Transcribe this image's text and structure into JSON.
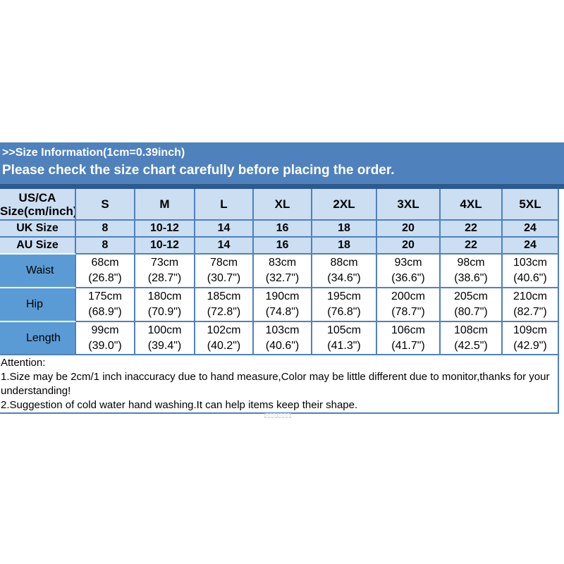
{
  "banner": {
    "line1": ">>Size Information(1cm=0.39inch)",
    "line2": "Please check the size chart carefully before placing the order."
  },
  "colors": {
    "banner_bg": "#4f81bd",
    "banner_bottom_border": "#2d5a8e",
    "light_blue_cell": "#cbdef2",
    "medium_blue_label_cell": "#5b9bd5",
    "grid_border": "#4f81bd",
    "banner_text": "#ffffff",
    "table_text": "#000000"
  },
  "size_table": {
    "corner": [
      "US/CA",
      "Size(cm/inch)"
    ],
    "sizes": [
      "S",
      "M",
      "L",
      "XL",
      "2XL",
      "3XL",
      "4XL",
      "5XL"
    ],
    "simple_rows": [
      {
        "label": "UK Size",
        "values": [
          "8",
          "10-12",
          "14",
          "16",
          "18",
          "20",
          "22",
          "24"
        ]
      },
      {
        "label": "AU Size",
        "values": [
          "8",
          "10-12",
          "14",
          "16",
          "18",
          "20",
          "22",
          "24"
        ]
      }
    ],
    "measure_rows": [
      {
        "label": "Waist",
        "cm": [
          "68cm",
          "73cm",
          "78cm",
          "83cm",
          "88cm",
          "93cm",
          "98cm",
          "103cm"
        ],
        "inch": [
          "(26.8\")",
          "(28.7\")",
          "(30.7\")",
          "(32.7\")",
          "(34.6\")",
          "(36.6\")",
          "(38.6\")",
          "(40.6\")"
        ]
      },
      {
        "label": "Hip",
        "cm": [
          "175cm",
          "180cm",
          "185cm",
          "190cm",
          "195cm",
          "200cm",
          "205cm",
          "210cm"
        ],
        "inch": [
          "(68.9\")",
          "(70.9\")",
          "(72.8\")",
          "(74.8\")",
          "(76.8\")",
          "(78.7\")",
          "(80.7\")",
          "(82.7\")"
        ]
      },
      {
        "label": "Length",
        "cm": [
          "99cm",
          "100cm",
          "102cm",
          "103cm",
          "105cm",
          "106cm",
          "108cm",
          "109cm"
        ],
        "inch": [
          "(39.0\")",
          "(39.4\")",
          "(40.2\")",
          "(40.6\")",
          "(41.3\")",
          "(41.7\")",
          "(42.5\")",
          "(42.9\")"
        ]
      }
    ]
  },
  "attention": {
    "title": "Attention:",
    "lines": [
      "1.Size may be 2cm/1 inch inaccuracy due to hand measure,Color may be little different due to monitor,thanks for your understanding!",
      "2.Suggestion of cold water hand washing.It can help items keep their shape."
    ]
  },
  "chart_data": {
    "type": "table",
    "title": ">>Size Information(1cm=0.39inch)",
    "subtitle": "Please check the size chart carefully before placing the order.",
    "columns": [
      "US/CA Size(cm/inch)",
      "S",
      "M",
      "L",
      "XL",
      "2XL",
      "3XL",
      "4XL",
      "5XL"
    ],
    "rows": [
      [
        "UK Size",
        "8",
        "10-12",
        "14",
        "16",
        "18",
        "20",
        "22",
        "24"
      ],
      [
        "AU Size",
        "8",
        "10-12",
        "14",
        "16",
        "18",
        "20",
        "22",
        "24"
      ],
      [
        "Waist",
        "68cm (26.8\")",
        "73cm (28.7\")",
        "78cm (30.7\")",
        "83cm (32.7\")",
        "88cm (34.6\")",
        "93cm (36.6\")",
        "98cm (38.6\")",
        "103cm (40.6\")"
      ],
      [
        "Hip",
        "175cm (68.9\")",
        "180cm (70.9\")",
        "185cm (72.8\")",
        "190cm (74.8\")",
        "195cm (76.8\")",
        "200cm (78.7\")",
        "205cm (80.7\")",
        "210cm (82.7\")"
      ],
      [
        "Length",
        "99cm (39.0\")",
        "100cm (39.4\")",
        "102cm (40.2\")",
        "103cm (40.6\")",
        "105cm (41.3\")",
        "106cm (41.7\")",
        "108cm (42.5\")",
        "109cm (42.9\")"
      ]
    ]
  }
}
